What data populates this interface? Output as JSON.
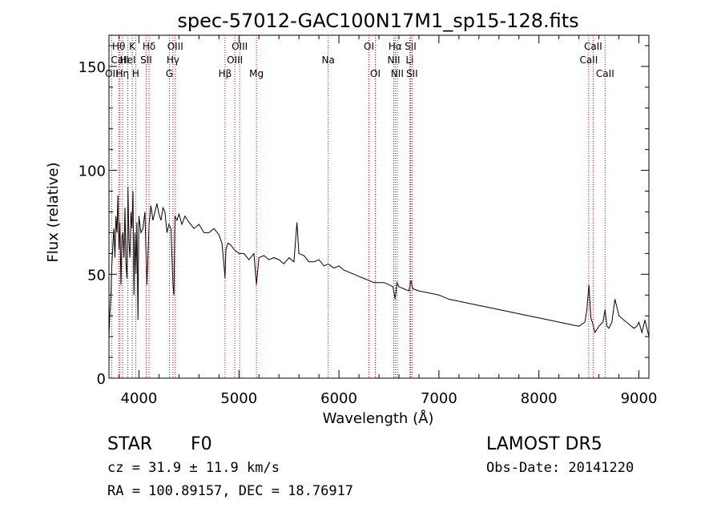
{
  "chart_data": {
    "type": "line",
    "title": "spec-57012-GAC100N17M1_sp15-128.fits",
    "xlabel": "Wavelength (Å)",
    "ylabel": "Flux (relative)",
    "xlim": [
      3700,
      9100
    ],
    "ylim": [
      0,
      165
    ],
    "x_ticks": [
      4000,
      5000,
      6000,
      7000,
      8000,
      9000
    ],
    "y_ticks": [
      0,
      50,
      100,
      150
    ],
    "grid": false,
    "line_color": "#000000",
    "marker_color": "#cc0000",
    "series": [
      {
        "x": [
          3700,
          3710,
          3720,
          3730,
          3740,
          3750,
          3760,
          3770,
          3780,
          3790,
          3800,
          3810,
          3820,
          3830,
          3840,
          3850,
          3860,
          3870,
          3880,
          3890,
          3900,
          3910,
          3920,
          3930,
          3940,
          3950,
          3960,
          3970,
          3980,
          3990,
          4000,
          4020,
          4040,
          4060,
          4080,
          4101,
          4120,
          4140,
          4160,
          4180,
          4200,
          4220,
          4240,
          4260,
          4280,
          4300,
          4320,
          4340,
          4350,
          4360,
          4380,
          4400,
          4430,
          4460,
          4500,
          4550,
          4600,
          4650,
          4700,
          4750,
          4800,
          4830,
          4850,
          4861,
          4870,
          4890,
          4920,
          4950,
          5000,
          5050,
          5100,
          5150,
          5175,
          5200,
          5250,
          5300,
          5350,
          5400,
          5450,
          5500,
          5550,
          5580,
          5600,
          5650,
          5700,
          5750,
          5800,
          5850,
          5893,
          5950,
          6000,
          6050,
          6100,
          6150,
          6200,
          6250,
          6300,
          6350,
          6400,
          6450,
          6500,
          6540,
          6563,
          6580,
          6600,
          6650,
          6700,
          6720,
          6740,
          6800,
          6900,
          7000,
          7100,
          7200,
          7300,
          7400,
          7500,
          7600,
          7700,
          7800,
          7900,
          8000,
          8100,
          8200,
          8300,
          8400,
          8460,
          8480,
          8500,
          8520,
          8540,
          8560,
          8600,
          8640,
          8662,
          8680,
          8700,
          8730,
          8760,
          8800,
          8850,
          8900,
          8950,
          8980,
          9000,
          9030,
          9060,
          9080,
          9100
        ],
        "y": [
          20,
          32,
          40,
          55,
          65,
          72,
          58,
          78,
          70,
          88,
          62,
          75,
          45,
          68,
          70,
          58,
          82,
          55,
          48,
          92,
          65,
          58,
          80,
          72,
          90,
          40,
          70,
          50,
          75,
          28,
          78,
          70,
          72,
          80,
          45,
          74,
          83,
          76,
          80,
          84,
          79,
          76,
          82,
          80,
          70,
          74,
          72,
          45,
          40,
          78,
          76,
          79,
          74,
          78,
          75,
          72,
          74,
          70,
          70,
          72,
          69,
          65,
          55,
          48,
          62,
          65,
          64,
          62,
          60,
          60,
          57,
          60,
          45,
          58,
          59,
          57,
          58,
          57,
          55,
          58,
          56,
          75,
          60,
          59,
          56,
          56,
          57,
          54,
          55,
          53,
          54,
          52,
          51,
          50,
          49,
          48,
          47,
          46,
          46,
          46,
          45,
          44,
          38,
          46,
          44,
          43,
          42,
          47,
          43,
          42,
          41,
          40,
          38,
          37,
          36,
          35,
          34,
          33,
          32,
          31,
          30,
          29,
          28,
          27,
          26,
          25,
          27,
          33,
          45,
          29,
          26,
          22,
          25,
          27,
          33,
          25,
          24,
          27,
          38,
          30,
          28,
          26,
          24,
          25,
          27,
          22,
          28,
          24,
          20
        ]
      }
    ],
    "line_markers": [
      {
        "label": "Hθ",
        "x": 3798,
        "row": 0
      },
      {
        "label": "CaII",
        "x": 3810,
        "row": 1
      },
      {
        "label": "OII",
        "x": 3727,
        "row": 2
      },
      {
        "label": "Hη",
        "x": 3835,
        "row": 2
      },
      {
        "label": "K",
        "x": 3933,
        "row": 0
      },
      {
        "label": "HeI",
        "x": 3889,
        "row": 1
      },
      {
        "label": "H",
        "x": 3968,
        "row": 2
      },
      {
        "label": "Hδ",
        "x": 4101,
        "row": 0
      },
      {
        "label": "SII",
        "x": 4072,
        "row": 1
      },
      {
        "label": "OIII",
        "x": 4363,
        "row": 0
      },
      {
        "label": "Hγ",
        "x": 4340,
        "row": 1
      },
      {
        "label": "G",
        "x": 4305,
        "row": 2
      },
      {
        "label": "OIII",
        "x": 5007,
        "row": 0
      },
      {
        "label": "OIII",
        "x": 4959,
        "row": 1
      },
      {
        "label": "Hβ",
        "x": 4861,
        "row": 2
      },
      {
        "label": "Mg",
        "x": 5175,
        "row": 2
      },
      {
        "label": "Na",
        "x": 5893,
        "row": 1
      },
      {
        "label": "OI",
        "x": 6300,
        "row": 0
      },
      {
        "label": "OI",
        "x": 6364,
        "row": 2
      },
      {
        "label": "Hα",
        "x": 6563,
        "row": 0
      },
      {
        "label": "NII",
        "x": 6548,
        "row": 1
      },
      {
        "label": "NII",
        "x": 6583,
        "row": 2
      },
      {
        "label": "SII",
        "x": 6716,
        "row": 0
      },
      {
        "label": "Li",
        "x": 6708,
        "row": 1
      },
      {
        "label": "SII",
        "x": 6731,
        "row": 2
      },
      {
        "label": "CaII",
        "x": 8542,
        "row": 0
      },
      {
        "label": "CaII",
        "x": 8498,
        "row": 1
      },
      {
        "label": "CaII",
        "x": 8662,
        "row": 2
      }
    ]
  },
  "info": {
    "class_label": "STAR",
    "subclass": "F0",
    "survey": "LAMOST DR5",
    "cz": "cz = 31.9 ± 11.9 km/s",
    "obs_date": "Obs-Date: 20141220",
    "radec": "RA = 100.89157, DEC =  18.76917"
  }
}
